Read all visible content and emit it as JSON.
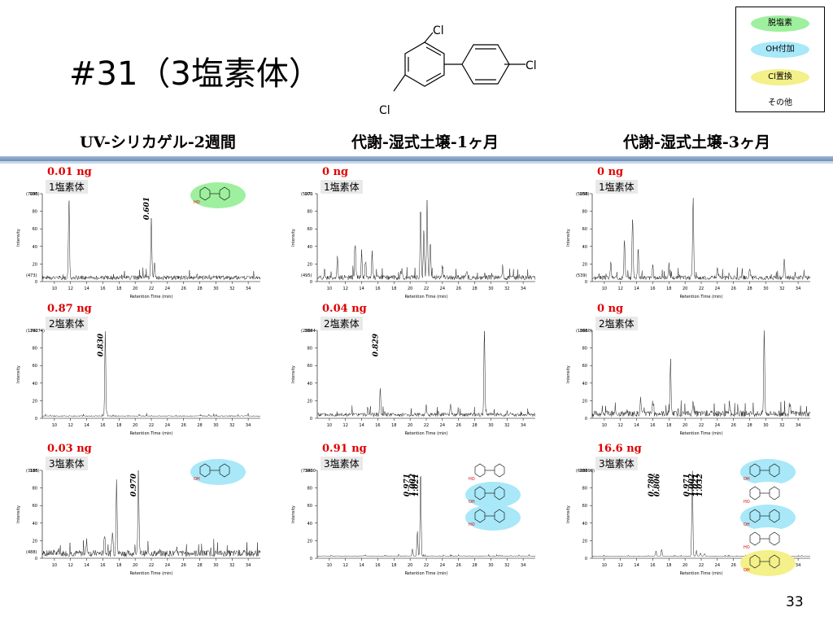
{
  "slide": {
    "title": "#31（3塩素体）",
    "page_number": "33",
    "column_headers": [
      "UV-シリカゲル-2週間",
      "代謝-湿式土壌-1ヶ月",
      "代謝-湿式土壌-3ヶ月"
    ],
    "molecule_labels": [
      "Cl",
      "Cl",
      "Cl"
    ]
  },
  "legend": {
    "items": [
      {
        "label": "脱塩素",
        "color": "#9ef09e"
      },
      {
        "label": "OH付加",
        "color": "#a8e8f8"
      },
      {
        "label": "Cl置換",
        "color": "#f4f08a"
      },
      {
        "label": "その他",
        "color": "#ffffff"
      }
    ]
  },
  "chart_data": [
    {
      "type": "line",
      "column": 0,
      "row": 0,
      "amount": "0.01 ng",
      "class_label": "1塩素体",
      "scale_max": "(7095)",
      "scale_min": "(473)",
      "peak_labels": [
        {
          "x": 22.0,
          "text": "0.601"
        }
      ],
      "peaks": [
        [
          11.8,
          92
        ],
        [
          22.0,
          68
        ],
        [
          22.4,
          18
        ]
      ],
      "noise": 8,
      "seed": 1,
      "xlabel": "Retention Time (min)",
      "ylabel": "Intensity",
      "x_ticks": [
        10,
        12,
        14,
        16,
        18,
        20,
        22,
        24,
        26,
        28,
        30,
        32,
        34
      ],
      "y_ticks": [
        0,
        20,
        40,
        60,
        80,
        100
      ],
      "xlim": [
        8.5,
        35.5
      ],
      "ylim": [
        0,
        100
      ],
      "structure_tags": [
        {
          "bubble": "#9ef09e",
          "label": "HO"
        }
      ]
    },
    {
      "type": "line",
      "column": 1,
      "row": 0,
      "amount": "0 ng",
      "class_label": "1塩素体",
      "scale_max": "(5071",
      "scale_min": "(495)",
      "peak_labels": [],
      "peaks": [
        [
          21.3,
          82
        ],
        [
          21.7,
          55
        ],
        [
          22.1,
          88
        ],
        [
          22.5,
          40
        ],
        [
          13.2,
          38
        ],
        [
          14.0,
          30
        ],
        [
          14.5,
          18
        ],
        [
          15.3,
          28
        ],
        [
          11.0,
          22
        ],
        [
          19.0,
          10
        ],
        [
          24.0,
          12
        ],
        [
          27.0,
          8
        ],
        [
          31.5,
          10
        ]
      ],
      "noise": 9,
      "seed": 2,
      "xlabel": "Retention Time (min)",
      "ylabel": "Intensity",
      "x_ticks": [
        10,
        12,
        14,
        16,
        18,
        20,
        22,
        24,
        26,
        28,
        30,
        32,
        34
      ],
      "y_ticks": [
        0,
        20,
        40,
        60,
        80,
        100
      ],
      "xlim": [
        8.5,
        35.5
      ],
      "ylim": [
        0,
        100
      ],
      "structure_tags": []
    },
    {
      "type": "line",
      "column": 2,
      "row": 0,
      "amount": "0 ng",
      "class_label": "1塩素体",
      "scale_max": "(5058)",
      "scale_min": "(539)",
      "peak_labels": [],
      "peaks": [
        [
          21.0,
          95
        ],
        [
          13.5,
          70
        ],
        [
          12.5,
          42
        ],
        [
          14.2,
          35
        ],
        [
          10.8,
          18
        ],
        [
          16.0,
          14
        ],
        [
          18.0,
          16
        ],
        [
          24.0,
          12
        ],
        [
          28.0,
          10
        ],
        [
          32.3,
          20
        ]
      ],
      "noise": 8,
      "seed": 3,
      "xlabel": "Retention Time (min)",
      "ylabel": "Intensity",
      "x_ticks": [
        10,
        12,
        14,
        16,
        18,
        20,
        22,
        24,
        26,
        28,
        30,
        32,
        34
      ],
      "y_ticks": [
        0,
        20,
        40,
        60,
        80,
        100
      ],
      "xlim": [
        8.5,
        35.5
      ],
      "ylim": [
        0,
        100
      ],
      "structure_tags": []
    },
    {
      "type": "line",
      "column": 0,
      "row": 1,
      "amount": "0.87 ng",
      "class_label": "2塩素体",
      "scale_max": "(174274)",
      "scale_min": "",
      "peak_labels": [
        {
          "x": 16.3,
          "text": "0.830"
        }
      ],
      "peaks": [
        [
          16.3,
          98
        ]
      ],
      "noise": 2,
      "seed": 4,
      "xlabel": "Retention Time (min)",
      "ylabel": "Intensity",
      "x_ticks": [
        10,
        12,
        14,
        16,
        18,
        20,
        22,
        24,
        26,
        28,
        30,
        32,
        34
      ],
      "y_ticks": [
        0,
        20,
        40,
        60,
        80,
        100
      ],
      "xlim": [
        8.5,
        35.5
      ],
      "ylim": [
        0,
        100
      ],
      "structure_tags": []
    },
    {
      "type": "line",
      "column": 1,
      "row": 1,
      "amount": "0.04 ng",
      "class_label": "2塩素体",
      "scale_max": "(28644",
      "scale_min": "",
      "peak_labels": [
        {
          "x": 16.3,
          "text": "0.829"
        }
      ],
      "peaks": [
        [
          16.3,
          32
        ],
        [
          29.2,
          95
        ],
        [
          22.0,
          12
        ],
        [
          25.0,
          10
        ]
      ],
      "noise": 7,
      "seed": 5,
      "xlabel": "Retention Time (min)",
      "ylabel": "Intensity",
      "x_ticks": [
        10,
        12,
        14,
        16,
        18,
        20,
        22,
        24,
        26,
        28,
        30,
        32,
        34
      ],
      "y_ticks": [
        0,
        20,
        40,
        60,
        80,
        100
      ],
      "xlim": [
        8.5,
        35.5
      ],
      "ylim": [
        0,
        100
      ],
      "structure_tags": []
    },
    {
      "type": "line",
      "column": 2,
      "row": 1,
      "amount": "0 ng",
      "class_label": "2塩素体",
      "scale_max": "(18660)",
      "scale_min": "",
      "peak_labels": [],
      "peaks": [
        [
          29.8,
          100
        ],
        [
          18.2,
          60
        ],
        [
          14.5,
          18
        ],
        [
          16.0,
          14
        ],
        [
          21.0,
          16
        ],
        [
          25.5,
          14
        ],
        [
          33.0,
          12
        ]
      ],
      "noise": 11,
      "seed": 6,
      "xlabel": "Retention Time (min)",
      "ylabel": "Intensity",
      "x_ticks": [
        10,
        12,
        14,
        16,
        18,
        20,
        22,
        24,
        26,
        28,
        30,
        32,
        34
      ],
      "y_ticks": [
        0,
        20,
        40,
        60,
        80,
        100
      ],
      "xlim": [
        8.5,
        35.5
      ],
      "ylim": [
        0,
        100
      ],
      "structure_tags": []
    },
    {
      "type": "line",
      "column": 0,
      "row": 2,
      "amount": "0.03 ng",
      "class_label": "3塩素体",
      "scale_max": "(3185)",
      "scale_min": "(488)",
      "peak_labels": [
        {
          "x": 20.4,
          "text": "0.970"
        }
      ],
      "peaks": [
        [
          20.4,
          98
        ],
        [
          17.7,
          88
        ],
        [
          17.2,
          25
        ],
        [
          16.2,
          20
        ],
        [
          14.0,
          14
        ]
      ],
      "noise": 12,
      "seed": 7,
      "xlabel": "Retention Time (min)",
      "ylabel": "Intensity",
      "x_ticks": [
        10,
        12,
        14,
        16,
        18,
        20,
        22,
        24,
        26,
        28,
        30,
        32,
        34
      ],
      "y_ticks": [
        0,
        20,
        40,
        60,
        80,
        100
      ],
      "xlim": [
        8.5,
        35.5
      ],
      "ylim": [
        0,
        100
      ],
      "structure_tags": [
        {
          "bubble": "#a8e8f8",
          "label": "OH"
        }
      ]
    },
    {
      "type": "line",
      "column": 1,
      "row": 2,
      "amount": "0.91 ng",
      "class_label": "3塩素体",
      "scale_max": "(73430",
      "scale_min": "",
      "peak_labels": [
        {
          "x": 20.2,
          "text": "0.971"
        },
        {
          "x": 20.9,
          "text": "1.002"
        },
        {
          "x": 21.3,
          "text": "1.021"
        }
      ],
      "peaks": [
        [
          21.3,
          98
        ],
        [
          20.9,
          28
        ],
        [
          20.3,
          8
        ]
      ],
      "noise": 1.5,
      "seed": 8,
      "xlabel": "Retention Time (min)",
      "ylabel": "Intensity",
      "x_ticks": [
        10,
        12,
        14,
        16,
        18,
        20,
        22,
        24,
        26,
        28,
        30,
        32,
        34
      ],
      "y_ticks": [
        0,
        20,
        40,
        60,
        80,
        100
      ],
      "xlim": [
        8.5,
        35.5
      ],
      "ylim": [
        0,
        100
      ],
      "structure_tags": [
        {
          "bubble": "#ffffff",
          "label": "HO"
        },
        {
          "bubble": "#a8e8f8",
          "label": "OH"
        },
        {
          "bubble": "#a8e8f8",
          "label": "HO"
        }
      ]
    },
    {
      "type": "line",
      "column": 2,
      "row": 2,
      "amount": "16.6 ng",
      "class_label": "3塩素体",
      "scale_max": "(688898)",
      "scale_min": "",
      "peak_labels": [
        {
          "x": 16.4,
          "text": "0.780"
        },
        {
          "x": 17.1,
          "text": "0.806"
        },
        {
          "x": 20.8,
          "text": "0.971"
        },
        {
          "x": 21.4,
          "text": "1.002"
        },
        {
          "x": 21.9,
          "text": "1.021"
        },
        {
          "x": 22.4,
          "text": "1.032"
        }
      ],
      "peaks": [
        [
          20.9,
          98
        ],
        [
          16.4,
          6
        ],
        [
          17.1,
          8
        ],
        [
          21.4,
          6
        ],
        [
          21.9,
          4
        ],
        [
          22.4,
          3
        ]
      ],
      "noise": 1,
      "seed": 9,
      "xlabel": "Retention Time (min)",
      "ylabel": "Intensity",
      "x_ticks": [
        10,
        12,
        14,
        16,
        18,
        20,
        22,
        24,
        26,
        28,
        30,
        32,
        34
      ],
      "y_ticks": [
        0,
        20,
        40,
        60,
        80,
        100
      ],
      "xlim": [
        8.5,
        35.5
      ],
      "ylim": [
        0,
        100
      ],
      "structure_tags": [
        {
          "bubble": "#a8e8f8",
          "label": "OH"
        },
        {
          "bubble": "#ffffff",
          "label": "HO"
        },
        {
          "bubble": "#a8e8f8",
          "label": "OH"
        },
        {
          "bubble": "#ffffff",
          "label": "HO"
        },
        {
          "bubble": "#f4f08a",
          "label": "OH"
        }
      ]
    }
  ]
}
